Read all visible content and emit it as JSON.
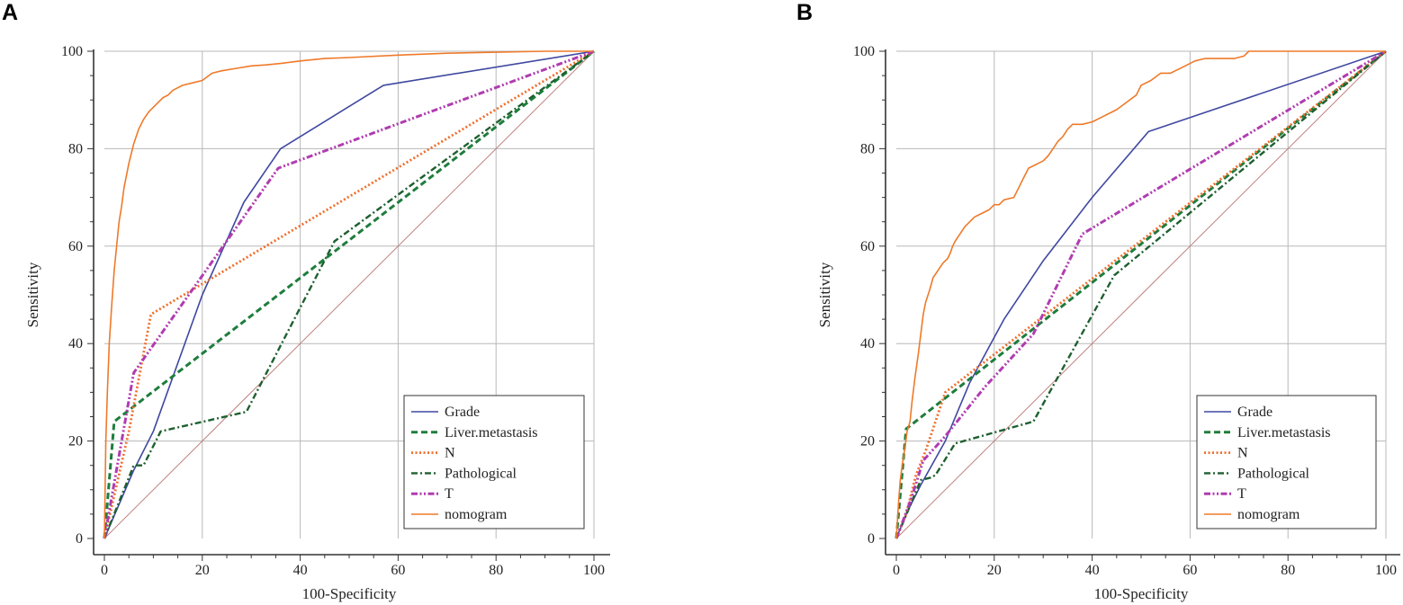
{
  "panel_labels": [
    "A",
    "B"
  ],
  "chart_data": [
    {
      "type": "line",
      "panel": "A",
      "xlabel": "100-Specificity",
      "ylabel": "Sensitivity",
      "xlim": [
        0,
        100
      ],
      "ylim": [
        0,
        100
      ],
      "xticks": [
        0,
        20,
        40,
        60,
        80,
        100
      ],
      "yticks": [
        0,
        20,
        40,
        60,
        80,
        100
      ],
      "grid": true,
      "legend_position": "bottom-right",
      "reference_line": {
        "x": [
          0,
          100
        ],
        "y": [
          0,
          100
        ],
        "color": "#c08080"
      },
      "series": [
        {
          "name": "Grade",
          "color": "#3f48a0",
          "dash": "solid",
          "x": [
            0,
            6,
            10,
            20,
            28.5,
            36,
            57,
            100
          ],
          "y": [
            0,
            14,
            22,
            50,
            69,
            80,
            93,
            100
          ]
        },
        {
          "name": "Liver.metastasis",
          "color": "#1e7d3c",
          "dash": "dashed",
          "x": [
            0,
            2,
            100
          ],
          "y": [
            0,
            24,
            100
          ]
        },
        {
          "name": "N",
          "color": "#ee6f2d",
          "dash": "dotted",
          "x": [
            0,
            5,
            9.5,
            100
          ],
          "y": [
            0,
            22,
            46,
            100
          ]
        },
        {
          "name": "Pathological",
          "color": "#1e6030",
          "dash": "dashdot",
          "x": [
            0,
            6,
            8,
            11.5,
            29,
            47,
            100
          ],
          "y": [
            0,
            15,
            15,
            22,
            26,
            61,
            100
          ]
        },
        {
          "name": "T",
          "color": "#b03cb0",
          "dash": "dashdotdot",
          "x": [
            0,
            6,
            35.5,
            100
          ],
          "y": [
            0,
            34,
            76,
            100
          ]
        },
        {
          "name": "nomogram",
          "color": "#ee7a2a",
          "dash": "solid",
          "x": [
            0,
            0.3,
            0.6,
            1,
            1.5,
            2,
            2.5,
            3,
            3.5,
            4,
            5,
            6,
            7,
            8,
            9,
            10,
            11,
            12,
            13,
            14,
            15,
            16,
            18,
            20,
            22,
            24,
            27,
            30,
            33,
            36,
            40,
            45,
            50,
            60,
            70,
            80,
            90,
            100
          ],
          "y": [
            0,
            20,
            30,
            40,
            48,
            55,
            60,
            65,
            68,
            72,
            77,
            81,
            84,
            86,
            87.5,
            88.5,
            89.5,
            90.5,
            91,
            92,
            92.5,
            93,
            93.5,
            94,
            95.5,
            96,
            96.5,
            97,
            97.2,
            97.5,
            98,
            98.5,
            98.7,
            99.2,
            99.6,
            99.8,
            100,
            100
          ]
        }
      ]
    },
    {
      "type": "line",
      "panel": "B",
      "xlabel": "100-Specificity",
      "ylabel": "Sensitivity",
      "xlim": [
        0,
        100
      ],
      "ylim": [
        0,
        100
      ],
      "xticks": [
        0,
        20,
        40,
        60,
        80,
        100
      ],
      "yticks": [
        0,
        20,
        40,
        60,
        80,
        100
      ],
      "grid": true,
      "legend_position": "bottom-right",
      "reference_line": {
        "x": [
          0,
          100
        ],
        "y": [
          0,
          100
        ],
        "color": "#c08080"
      },
      "series": [
        {
          "name": "Grade",
          "color": "#3f48a0",
          "dash": "solid",
          "x": [
            0,
            2,
            5,
            10,
            15,
            22,
            30,
            40,
            51.5,
            100
          ],
          "y": [
            0,
            5,
            11,
            20,
            32,
            45,
            57,
            70,
            83.5,
            100
          ]
        },
        {
          "name": "Liver.metastasis",
          "color": "#1e7d3c",
          "dash": "dashed",
          "x": [
            0,
            2,
            100
          ],
          "y": [
            0,
            22.5,
            100
          ]
        },
        {
          "name": "N",
          "color": "#ee6f2d",
          "dash": "dotted",
          "x": [
            0,
            2,
            4,
            6,
            8,
            10,
            100
          ],
          "y": [
            0,
            5,
            13,
            18,
            24,
            30,
            100
          ]
        },
        {
          "name": "Pathological",
          "color": "#1e6030",
          "dash": "dashdot",
          "x": [
            0,
            5,
            7,
            8,
            12,
            28,
            44.5,
            100
          ],
          "y": [
            0,
            12,
            12.5,
            13,
            19.5,
            24,
            54,
            100
          ]
        },
        {
          "name": "T",
          "color": "#b03cb0",
          "dash": "dashdotdot",
          "x": [
            0,
            3,
            5.5,
            10,
            18,
            28,
            38,
            100
          ],
          "y": [
            0,
            8,
            16,
            21,
            31,
            42,
            62.5,
            100
          ]
        },
        {
          "name": "nomogram",
          "color": "#ee7a2a",
          "dash": "solid",
          "x": [
            0,
            0.5,
            0.8,
            1.2,
            1.5,
            1.8,
            2.2,
            2.8,
            3.2,
            3.8,
            4.5,
            5,
            5.5,
            6,
            6.8,
            7.5,
            8.5,
            9.5,
            10.5,
            11,
            11.5,
            12,
            13,
            14,
            15,
            16,
            17,
            18,
            19,
            20,
            21,
            22,
            24,
            25,
            26,
            27,
            29,
            30,
            31,
            32,
            33,
            34,
            35,
            36,
            38,
            40,
            42,
            43,
            45,
            47,
            49,
            50,
            52,
            54,
            56,
            57,
            59,
            61,
            63,
            65,
            67,
            69,
            71,
            72,
            74,
            80,
            100
          ],
          "y": [
            0,
            8,
            12,
            15,
            17,
            19,
            22,
            24,
            28,
            33,
            38,
            42,
            46,
            48.5,
            51,
            53.5,
            55,
            56.5,
            57.5,
            58.5,
            60,
            61,
            62.5,
            64,
            65,
            66,
            66.5,
            67,
            67.5,
            68.5,
            68.5,
            69.5,
            70,
            72,
            74,
            76,
            77,
            77.5,
            78.5,
            80,
            81.5,
            82.5,
            84,
            85,
            85,
            85.5,
            86.5,
            87,
            88,
            89.5,
            91,
            93,
            94,
            95.5,
            95.5,
            96,
            97,
            98,
            98.5,
            98.5,
            98.5,
            98.5,
            99,
            100,
            100,
            100,
            100
          ]
        }
      ]
    }
  ]
}
